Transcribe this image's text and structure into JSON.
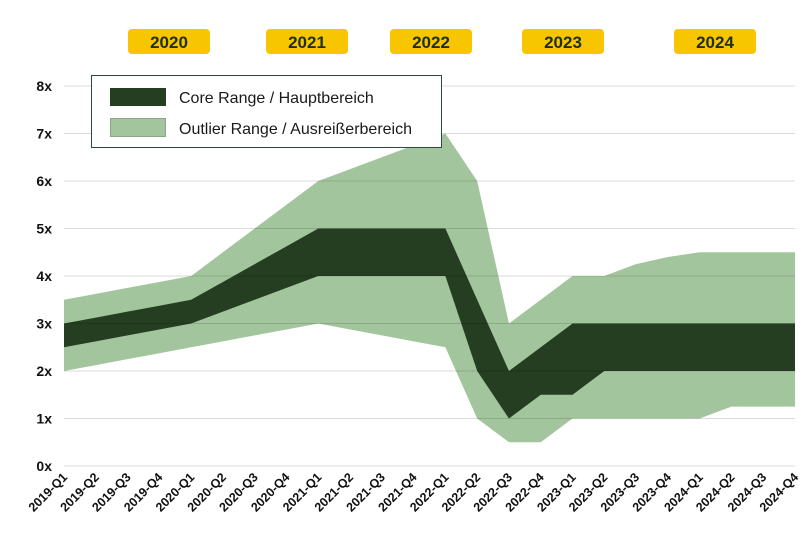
{
  "chart_data": {
    "type": "area",
    "title": "",
    "xlabel": "",
    "ylabel": "",
    "categories": [
      "2019-Q1",
      "2019-Q2",
      "2019-Q3",
      "2019-Q4",
      "2020-Q1",
      "2020-Q2",
      "2020-Q3",
      "2020-Q4",
      "2021-Q1",
      "2021-Q2",
      "2021-Q3",
      "2021-Q4",
      "2022-Q1",
      "2022-Q2",
      "2022-Q3",
      "2022-Q4",
      "2023-Q1",
      "2023-Q2",
      "2023-Q3",
      "2023-Q4",
      "2024-Q1",
      "2024-Q2",
      "2024-Q3",
      "2024-Q4"
    ],
    "ylim": [
      0,
      8
    ],
    "yticks": [
      0,
      1,
      2,
      3,
      4,
      5,
      6,
      7,
      8
    ],
    "ytick_labels": [
      "0x",
      "1x",
      "2x",
      "3x",
      "4x",
      "5x",
      "6x",
      "7x",
      "8x"
    ],
    "grid": "horizontal",
    "legend_placement": "top-left",
    "year_badges": [
      {
        "label": "2020",
        "category": "2019-Q3",
        "span_to": "2020-Q2"
      },
      {
        "label": "2021",
        "category": "2020-Q3",
        "span_to": "2021-Q2"
      },
      {
        "label": "2022",
        "category": "2021-Q3",
        "span_to": "2022-Q1"
      },
      {
        "label": "2023",
        "category": "2022-Q3",
        "span_to": "2023-Q1"
      },
      {
        "label": "2024",
        "category": "2023-Q4",
        "span_to": "2024-Q2"
      }
    ],
    "series": [
      {
        "name": "Outlier Range / Ausreißerbereich",
        "color": "#a3c59d",
        "low": [
          2.0,
          2.125,
          2.25,
          2.375,
          2.5,
          2.625,
          2.75,
          2.875,
          3.0,
          2.875,
          2.75,
          2.625,
          2.5,
          1.0,
          0.5,
          0.5,
          1.0,
          1.0,
          1.0,
          1.0,
          1.0,
          1.25,
          1.25,
          1.25
        ],
        "high": [
          3.5,
          3.625,
          3.75,
          3.875,
          4.0,
          4.5,
          5.0,
          5.5,
          6.0,
          6.25,
          6.5,
          6.75,
          7.0,
          6.0,
          3.0,
          3.5,
          4.0,
          4.0,
          4.25,
          4.4,
          4.5,
          4.5,
          4.5,
          4.5
        ]
      },
      {
        "name": "Core Range / Hauptbereich",
        "color": "#253d21",
        "low": [
          2.5,
          2.625,
          2.75,
          2.875,
          3.0,
          3.25,
          3.5,
          3.75,
          4.0,
          4.0,
          4.0,
          4.0,
          4.0,
          2.0,
          1.0,
          1.5,
          1.5,
          2.0,
          2.0,
          2.0,
          2.0,
          2.0,
          2.0,
          2.0
        ],
        "high": [
          3.0,
          3.125,
          3.25,
          3.375,
          3.5,
          3.875,
          4.25,
          4.625,
          5.0,
          5.0,
          5.0,
          5.0,
          5.0,
          3.5,
          2.0,
          2.5,
          3.0,
          3.0,
          3.0,
          3.0,
          3.0,
          3.0,
          3.0,
          3.0
        ]
      }
    ],
    "legend": [
      "Core Range / Hauptbereich",
      "Outlier Range / Ausreißerbereich"
    ],
    "badge_color": "#f7c600"
  }
}
